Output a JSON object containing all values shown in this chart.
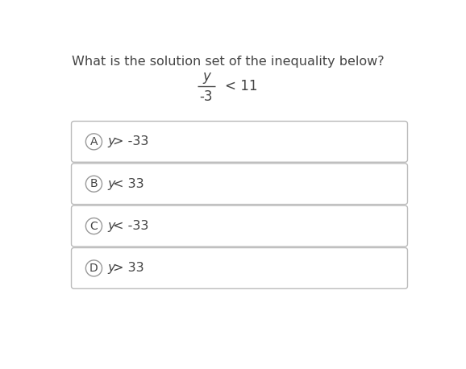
{
  "question": "What is the solution set of the inequality below?",
  "equation_numerator": "y",
  "equation_denominator": "-3",
  "equation_rhs": "< 11",
  "options": [
    {
      "label": "A",
      "text_italic": "y",
      "text_rest": "> -33"
    },
    {
      "label": "B",
      "text_italic": "y",
      "text_rest": "< 33"
    },
    {
      "label": "C",
      "text_italic": "y",
      "text_rest": "< -33"
    },
    {
      "label": "D",
      "text_italic": "y",
      "text_rest": "> 33"
    }
  ],
  "bg_color": "#ffffff",
  "text_color": "#444444",
  "box_edge_color": "#bbbbbb",
  "circle_edge_color": "#999999",
  "question_fontsize": 11.5,
  "option_fontsize": 11.5,
  "label_fontsize": 10,
  "eq_fontsize": 12
}
